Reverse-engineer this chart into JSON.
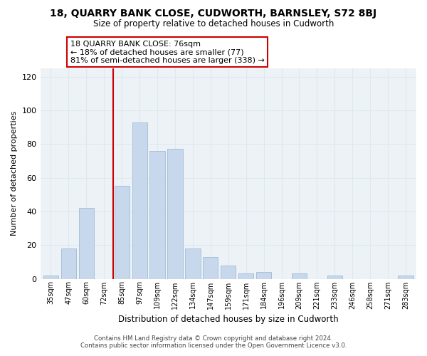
{
  "title": "18, QUARRY BANK CLOSE, CUDWORTH, BARNSLEY, S72 8BJ",
  "subtitle": "Size of property relative to detached houses in Cudworth",
  "xlabel": "Distribution of detached houses by size in Cudworth",
  "ylabel": "Number of detached properties",
  "bar_labels": [
    "35sqm",
    "47sqm",
    "60sqm",
    "72sqm",
    "85sqm",
    "97sqm",
    "109sqm",
    "122sqm",
    "134sqm",
    "147sqm",
    "159sqm",
    "171sqm",
    "184sqm",
    "196sqm",
    "209sqm",
    "221sqm",
    "233sqm",
    "246sqm",
    "258sqm",
    "271sqm",
    "283sqm"
  ],
  "bar_values": [
    2,
    18,
    42,
    0,
    55,
    93,
    76,
    77,
    18,
    13,
    8,
    3,
    4,
    0,
    3,
    0,
    2,
    0,
    0,
    0,
    2
  ],
  "bar_color": "#c8d8ec",
  "bar_edge_color": "#a8c0d8",
  "vline_x_index": 3.5,
  "ylim": [
    0,
    125
  ],
  "yticks": [
    0,
    20,
    40,
    60,
    80,
    100,
    120
  ],
  "annotation_title": "18 QUARRY BANK CLOSE: 76sqm",
  "annotation_line1": "← 18% of detached houses are smaller (77)",
  "annotation_line2": "81% of semi-detached houses are larger (338) →",
  "annotation_box_color": "#ffffff",
  "annotation_box_edge": "#cc0000",
  "vline_color": "#cc0000",
  "footer_line1": "Contains HM Land Registry data © Crown copyright and database right 2024.",
  "footer_line2": "Contains public sector information licensed under the Open Government Licence v3.0.",
  "grid_color": "#dce8f0",
  "background_color": "#ffffff",
  "plot_bg_color": "#edf2f7"
}
